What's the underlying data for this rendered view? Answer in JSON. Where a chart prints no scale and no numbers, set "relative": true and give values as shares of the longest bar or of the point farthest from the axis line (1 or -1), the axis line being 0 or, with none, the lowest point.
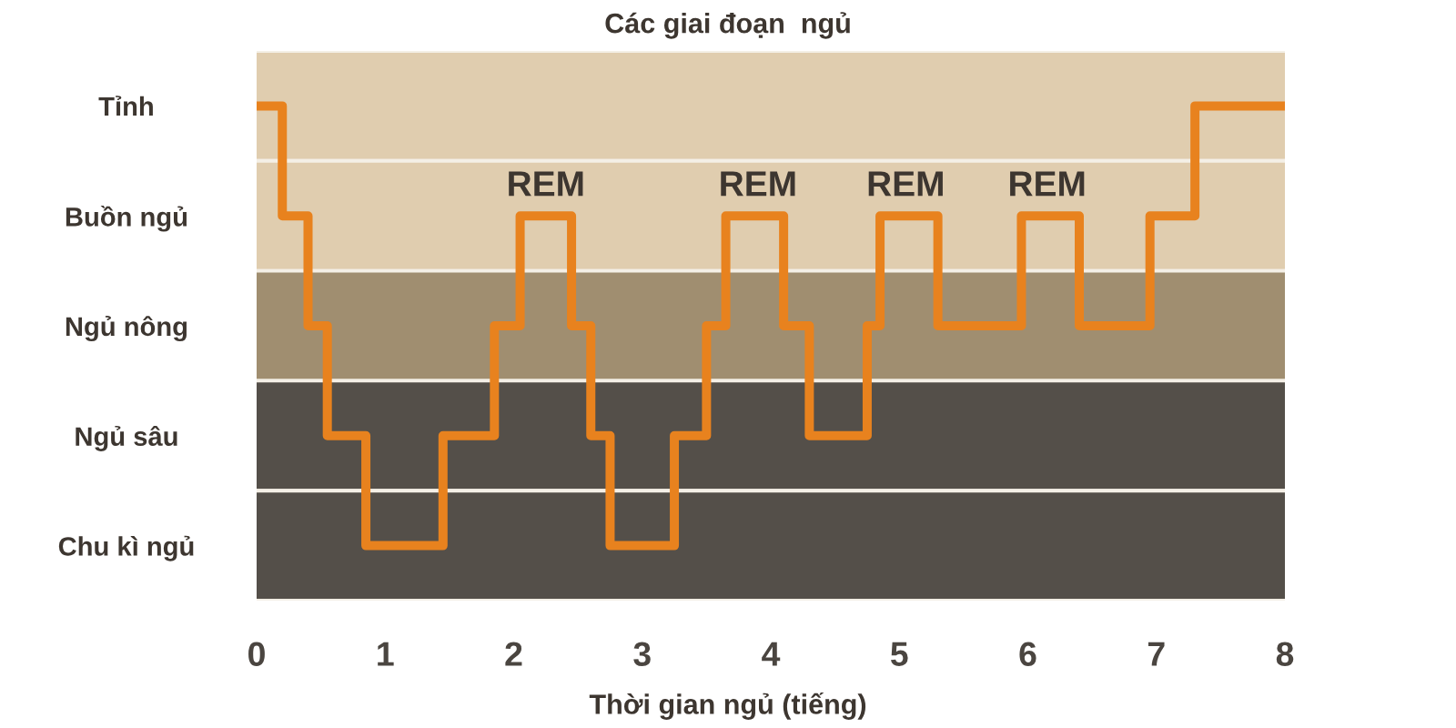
{
  "chart_data": {
    "type": "step",
    "relative": true,
    "title": "Các giai đoạn  ngủ",
    "xlabel": "Thời gian ngủ (tiếng)",
    "y_categories": [
      "Tỉnh",
      "Buồn ngủ",
      "Ngủ nông",
      "Ngủ sâu",
      "Chu kì ngủ"
    ],
    "x": [
      0,
      0.2,
      0.4,
      0.55,
      0.85,
      1.45,
      1.85,
      2.05,
      2.45,
      2.6,
      2.75,
      3.25,
      3.5,
      3.65,
      4.1,
      4.3,
      4.75,
      4.85,
      5.3,
      5.95,
      6.4,
      6.95,
      7.3,
      8
    ],
    "series": [
      {
        "color": "#e8821e",
        "values": [
          1,
          0.75,
          0.5,
          0.25,
          0,
          0.25,
          0.5,
          0.75,
          0.5,
          0.25,
          0,
          0.25,
          0.5,
          0.75,
          0.5,
          0.25,
          0.5,
          0.75,
          0.5,
          0.75,
          0.5,
          0.75,
          1,
          1
        ]
      }
    ],
    "xlim": [
      0,
      8
    ],
    "xticks": [
      0,
      1,
      2,
      3,
      4,
      5,
      6,
      7,
      8
    ],
    "bands": [
      {
        "axis": "y",
        "from": 0.875,
        "to": 1.125,
        "color": "#e0cdaf"
      },
      {
        "axis": "y",
        "from": 0.625,
        "to": 0.875,
        "color": "#e0cdaf"
      },
      {
        "axis": "y",
        "from": 0.375,
        "to": 0.625,
        "color": "#a08e70"
      },
      {
        "axis": "y",
        "from": 0.125,
        "to": 0.375,
        "color": "#544f49"
      },
      {
        "axis": "y",
        "from": -0.125,
        "to": 0.125,
        "color": "#544f49"
      }
    ],
    "annotations": [
      {
        "text": "REM",
        "x": 2.25,
        "y": 0.75
      },
      {
        "text": "REM",
        "x": 3.9,
        "y": 0.75
      },
      {
        "text": "REM",
        "x": 5.05,
        "y": 0.75
      },
      {
        "text": "REM",
        "x": 6.15,
        "y": 0.75
      }
    ],
    "grid": false
  }
}
